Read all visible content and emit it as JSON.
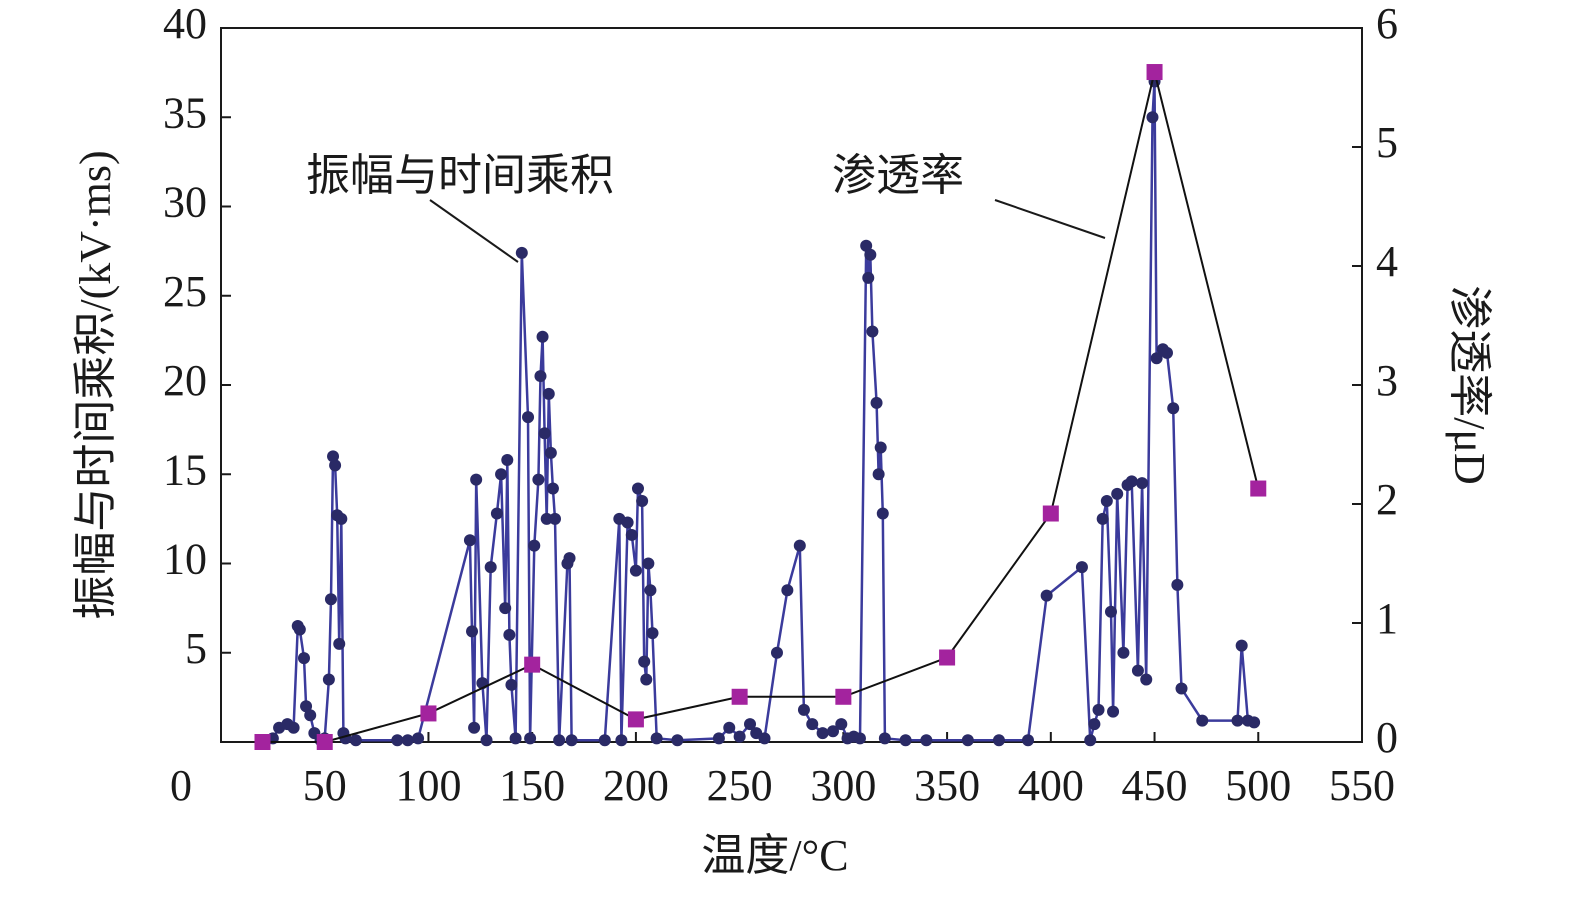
{
  "chart_data": {
    "type": "line",
    "xlabel": "温度/°C",
    "ylabel": "振幅与时间乘积/(kV·ms)",
    "y2label": "渗透率/μD",
    "xlim": [
      0,
      550
    ],
    "xticks": [
      0,
      50,
      100,
      150,
      200,
      250,
      300,
      350,
      400,
      450,
      500,
      550
    ],
    "ylim": [
      0,
      40
    ],
    "yticks": [
      5,
      10,
      15,
      20,
      25,
      30,
      35,
      40
    ],
    "y2lim": [
      0,
      6
    ],
    "y2ticks": [
      0,
      1,
      2,
      3,
      4,
      5,
      6
    ],
    "series": [
      {
        "name": "振幅与时间乘积",
        "color": "#3b3b9c",
        "marker_color": "#2a2a66",
        "x": [
          20,
          25,
          28,
          32,
          35,
          37,
          38,
          40,
          41,
          43,
          45,
          48,
          50,
          52,
          53,
          54,
          55,
          56,
          57,
          58,
          59,
          60,
          65,
          85,
          90,
          95,
          120,
          121,
          122,
          123,
          126,
          128,
          130,
          133,
          135,
          137,
          138,
          139,
          140,
          142,
          145,
          148,
          149,
          151,
          153,
          154,
          155,
          156,
          157,
          158,
          159,
          160,
          161,
          163,
          167,
          168,
          169,
          185,
          192,
          193,
          196,
          198,
          200,
          201,
          203,
          204,
          205,
          206,
          207,
          208,
          210,
          220,
          240,
          245,
          250,
          255,
          258,
          262,
          268,
          273,
          279,
          281,
          285,
          290,
          295,
          299,
          302,
          305,
          308,
          311,
          312,
          313,
          314,
          316,
          317,
          318,
          319,
          320,
          330,
          340,
          360,
          375,
          389,
          398,
          415,
          419,
          421,
          423,
          425,
          427,
          429,
          430,
          432,
          435,
          437,
          439,
          442,
          444,
          446,
          449,
          450,
          451,
          454,
          456,
          459,
          461,
          463,
          473,
          490,
          492,
          495,
          498
        ],
        "values": [
          0.1,
          0.2,
          0.8,
          1,
          0.8,
          6.5,
          6.3,
          4.7,
          2,
          1.5,
          0.5,
          0.1,
          0.2,
          3.5,
          8,
          16,
          15.5,
          12.7,
          5.5,
          12.5,
          0.5,
          0.2,
          0.1,
          0.1,
          0.1,
          0.2,
          11.3,
          6.2,
          0.8,
          14.7,
          3.3,
          0.1,
          9.8,
          12.8,
          15,
          7.5,
          15.8,
          6,
          3.2,
          0.2,
          27.4,
          18.2,
          0.2,
          11,
          14.7,
          20.5,
          22.7,
          17.3,
          12.5,
          19.5,
          16.2,
          14.2,
          12.5,
          0.1,
          10,
          10.3,
          0.1,
          0.1,
          12.5,
          0.1,
          12.3,
          11.6,
          9.6,
          14.2,
          13.5,
          4.5,
          3.5,
          10,
          8.5,
          6.1,
          0.2,
          0.1,
          0.2,
          0.8,
          0.3,
          1,
          0.5,
          0.2,
          5,
          8.5,
          11,
          1.8,
          1,
          0.5,
          0.6,
          1,
          0.2,
          0.3,
          0.2,
          27.8,
          26,
          27.3,
          23,
          19,
          15,
          16.5,
          12.8,
          0.2,
          0.1,
          0.1,
          0.1,
          0.1,
          0.1,
          8.2,
          9.8,
          0.1,
          1,
          1.8,
          12.5,
          13.5,
          7.3,
          1.7,
          13.9,
          5,
          14.4,
          14.6,
          4,
          14.5,
          3.5,
          35,
          37,
          21.5,
          22,
          21.8,
          18.7,
          8.8,
          3,
          1.2,
          1.2,
          5.4,
          1.2,
          1.1
        ]
      },
      {
        "name": "渗透率",
        "color": "#111111",
        "marker_color": "#a3239e",
        "axis": "y2",
        "x": [
          20,
          50,
          100,
          150,
          200,
          250,
          300,
          350,
          400,
          450,
          500
        ],
        "values": [
          0,
          0,
          0.24,
          0.65,
          0.19,
          0.38,
          0.38,
          0.71,
          1.92,
          5.63,
          2.13
        ]
      }
    ]
  }
}
